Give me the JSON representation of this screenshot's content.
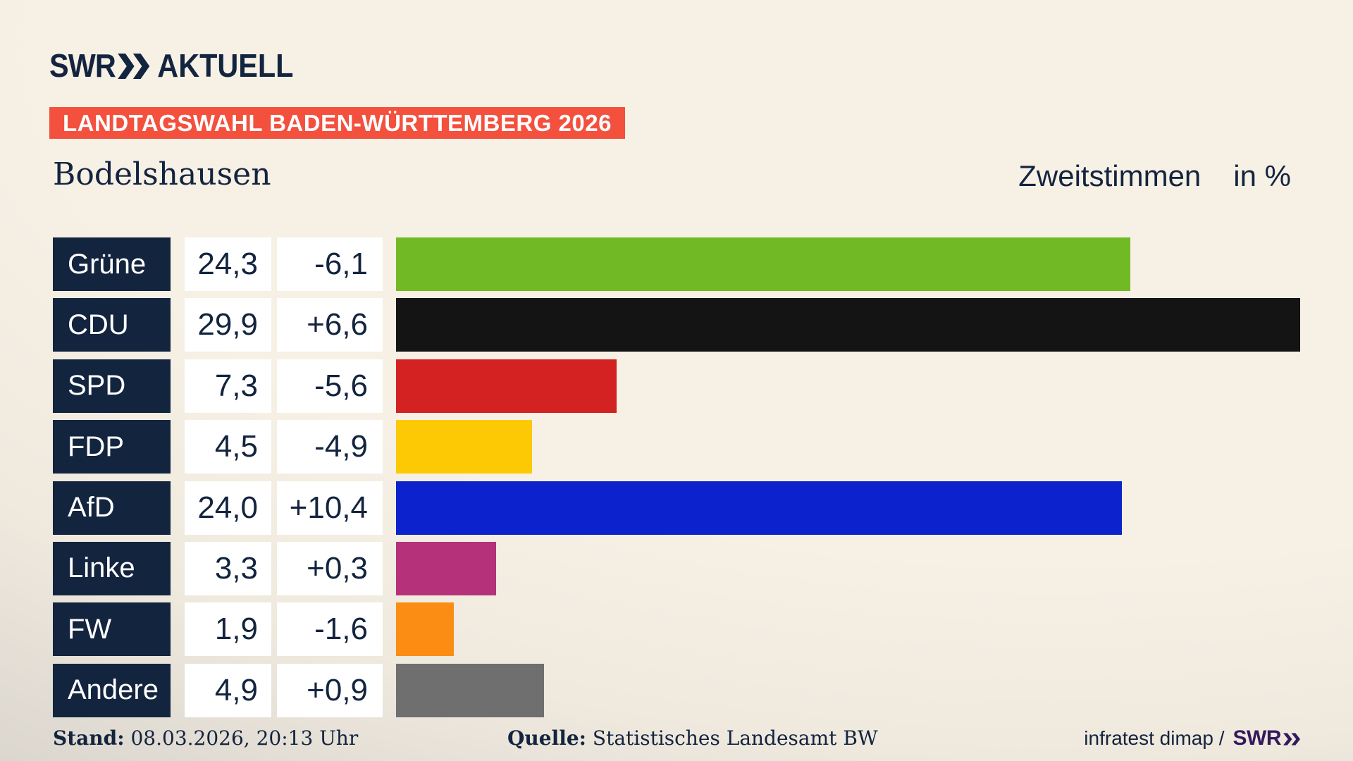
{
  "brand": {
    "logo_text": "SWR",
    "logo_chevron_icon": "double-chevron-right",
    "logo_suffix": "AKTUELL"
  },
  "header": {
    "banner": "LANDTAGSWAHL BADEN-WÜRTTEMBERG 2026",
    "municipality": "Bodelshausen",
    "vote_type": "Zweitstimmen",
    "unit": "in %"
  },
  "chart_data": {
    "type": "bar",
    "orientation": "horizontal",
    "title": "Zweitstimmen in %",
    "categories": [
      "Grüne",
      "CDU",
      "SPD",
      "FDP",
      "AfD",
      "Linke",
      "FW",
      "Andere"
    ],
    "values": [
      24.3,
      29.9,
      7.3,
      4.5,
      24.0,
      3.3,
      1.9,
      4.9
    ],
    "changes": [
      -6.1,
      6.6,
      -5.6,
      -4.9,
      10.4,
      0.3,
      -1.6,
      0.9
    ],
    "value_labels": [
      "24,3",
      "29,9",
      "7,3",
      "4,5",
      "24,0",
      "3,3",
      "1,9",
      "4,9"
    ],
    "change_labels": [
      "-6,1",
      "+6,6",
      "-5,6",
      "-4,9",
      "+10,4",
      "+0,3",
      "-1,6",
      "+0,9"
    ],
    "bar_colors": [
      "#72ba25",
      "#141414",
      "#d42222",
      "#fdc905",
      "#0b22cc",
      "#b5317a",
      "#fb8d15",
      "#6f6f6f"
    ],
    "xlim": [
      0,
      30
    ],
    "grid": false,
    "legend": "none"
  },
  "footer": {
    "stand_label": "Stand:",
    "stand_value": " 08.03.2026, 20:13 Uhr",
    "source_label": "Quelle:",
    "source_value": " Statistisches Landesamt BW",
    "credit": "infratest dimap /",
    "credit_logo": "SWR"
  },
  "colors": {
    "navy": "#13243f",
    "banner_red": "#f3503e",
    "background_cream": "#f7f0e5",
    "background_gray": "#c9c5be",
    "box_white": "#ffffff",
    "credit_purple": "#331a5c"
  }
}
